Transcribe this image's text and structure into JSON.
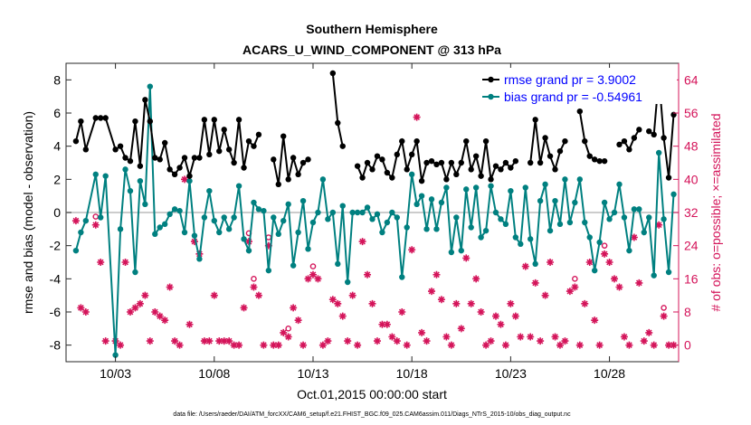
{
  "chart_data": {
    "type": "line",
    "title": "Southern Hemisphere",
    "subtitle": "ACARS_U_WIND_COMPONENT @ 313 hPa",
    "xlabel": "Oct.01,2015 00:00:00 start",
    "ylabel": "rmse and bias (model - observation)",
    "y2label": "# of obs: o=possible; ×=assimilated",
    "footer": "data file: /Users/raeder/DAI/ATM_forcXX/CAM6_setup/f.e21.FHIST_BGC.f09_025.CAM6assim.011/Diags_NTrS_2015-10/obs_diag_output.nc",
    "xlim": [
      0.5,
      31.5
    ],
    "ylim": [
      -9,
      9
    ],
    "y2lim": [
      -4,
      68
    ],
    "xticks": [
      {
        "x": 3,
        "label": "10/03"
      },
      {
        "x": 8,
        "label": "10/08"
      },
      {
        "x": 13,
        "label": "10/13"
      },
      {
        "x": 18,
        "label": "10/18"
      },
      {
        "x": 23,
        "label": "10/23"
      },
      {
        "x": 28,
        "label": "10/28"
      }
    ],
    "yticks": [
      -8,
      -6,
      -4,
      -2,
      0,
      2,
      4,
      6,
      8
    ],
    "y2ticks": [
      0,
      8,
      16,
      24,
      32,
      40,
      48,
      56,
      64
    ],
    "zero_line": 0,
    "legend_location": "top-right",
    "colors": {
      "rmse": "#000000",
      "bias": "#008080",
      "obs": "#d4145a",
      "zero": "#bbbbbb",
      "legend_rmse_text": "#0000ff",
      "legend_bias_text": "#0000ff"
    },
    "series": [
      {
        "name": "rmse grand pr = 3.9002",
        "role": "rmse",
        "x": [
          1.0,
          1.25,
          1.5,
          2.0,
          2.25,
          2.5,
          3.0,
          3.25,
          3.5,
          3.75,
          4.0,
          4.25,
          4.5,
          4.75,
          5.0,
          5.25,
          5.5,
          5.75,
          6.0,
          6.25,
          6.5,
          6.75,
          7.0,
          7.25,
          7.5,
          7.75,
          8.0,
          8.25,
          8.5,
          8.75,
          9.0,
          9.25,
          9.5,
          9.75,
          10.0,
          10.25,
          10.5,
          10.75,
          11.0,
          11.25,
          11.5,
          11.75,
          12.0,
          12.25,
          12.5,
          12.75,
          13.0,
          13.25,
          13.5,
          13.75,
          14.0,
          14.25,
          14.5,
          14.75,
          15.0,
          15.25,
          15.5,
          15.75,
          16.0,
          16.25,
          16.5,
          16.75,
          17.0,
          17.25,
          17.5,
          17.75,
          18.0,
          18.25,
          18.5,
          18.75,
          19.0,
          19.25,
          19.5,
          19.75,
          20.0,
          20.25,
          20.5,
          20.75,
          21.0,
          21.25,
          21.5,
          21.75,
          22.0,
          22.25,
          22.5,
          22.75,
          23.0,
          23.25,
          23.5,
          23.75,
          24.0,
          24.25,
          24.5,
          24.75,
          25.0,
          25.25,
          25.5,
          25.75,
          26.0,
          26.25,
          26.5,
          26.75,
          27.0,
          27.25,
          27.5,
          27.75,
          28.0,
          28.25,
          28.5,
          28.75,
          29.0,
          29.25,
          29.5,
          29.75,
          30.0,
          30.25,
          30.5,
          30.75,
          31.0,
          31.25
        ],
        "values": [
          4.3,
          5.5,
          3.8,
          5.7,
          5.7,
          5.7,
          3.8,
          4.0,
          3.3,
          3.1,
          5.5,
          2.8,
          6.8,
          5.5,
          3.3,
          3.2,
          4.2,
          2.6,
          2.3,
          2.7,
          3.3,
          2.2,
          3.3,
          3.3,
          5.6,
          3.5,
          5.6,
          3.7,
          5.0,
          3.8,
          3.0,
          5.6,
          2.7,
          4.3,
          4.0,
          4.7,
          null,
          null,
          3.2,
          1.7,
          4.6,
          2.0,
          3.3,
          2.3,
          3.0,
          3.2,
          null,
          null,
          null,
          null,
          8.4,
          5.4,
          4.0,
          null,
          null,
          2.8,
          2.1,
          3.0,
          2.6,
          3.4,
          3.2,
          2.4,
          2.1,
          3.5,
          4.3,
          2.6,
          3.5,
          4.3,
          1.9,
          3.0,
          3.1,
          2.9,
          3.0,
          2.0,
          3.0,
          2.3,
          3.0,
          4.3,
          2.6,
          3.4,
          2.2,
          4.3,
          2.0,
          2.8,
          2.6,
          3.0,
          2.7,
          3.1,
          null,
          null,
          3.0,
          5.6,
          3.0,
          4.5,
          3.4,
          2.6,
          3.7,
          4.3,
          null,
          null,
          6.1,
          4.3,
          3.4,
          3.2,
          3.1,
          3.1,
          null,
          null,
          4.1,
          4.3,
          3.8,
          4.5,
          5.0,
          null,
          4.9,
          4.7,
          8.2,
          4.5,
          2.1,
          5.9
        ]
      },
      {
        "name": "bias grand pr = -0.54961",
        "role": "bias",
        "x": [
          1.0,
          1.25,
          1.5,
          2.0,
          2.25,
          2.5,
          3.0,
          3.25,
          3.5,
          3.75,
          4.0,
          4.25,
          4.5,
          4.75,
          5.0,
          5.25,
          5.5,
          5.75,
          6.0,
          6.25,
          6.5,
          6.75,
          7.0,
          7.25,
          7.5,
          7.75,
          8.0,
          8.25,
          8.5,
          8.75,
          9.0,
          9.25,
          9.5,
          9.75,
          10.0,
          10.25,
          10.5,
          10.75,
          11.0,
          11.25,
          11.5,
          11.75,
          12.0,
          12.25,
          12.5,
          12.75,
          13.0,
          13.25,
          13.5,
          13.75,
          14.0,
          14.25,
          14.5,
          14.75,
          15.0,
          15.25,
          15.5,
          15.75,
          16.0,
          16.25,
          16.5,
          16.75,
          17.0,
          17.25,
          17.5,
          17.75,
          18.0,
          18.25,
          18.5,
          18.75,
          19.0,
          19.25,
          19.5,
          19.75,
          20.0,
          20.25,
          20.5,
          20.75,
          21.0,
          21.25,
          21.5,
          21.75,
          22.0,
          22.25,
          22.5,
          22.75,
          23.0,
          23.25,
          23.5,
          23.75,
          24.0,
          24.25,
          24.5,
          24.75,
          25.0,
          25.25,
          25.5,
          25.75,
          26.0,
          26.25,
          26.5,
          26.75,
          27.0,
          27.25,
          27.5,
          27.75,
          28.0,
          28.25,
          28.5,
          28.75,
          29.0,
          29.25,
          29.5,
          29.75,
          30.0,
          30.25,
          30.5,
          30.75,
          31.0,
          31.25
        ],
        "values": [
          -2.3,
          -1.2,
          -0.5,
          2.3,
          -0.3,
          2.2,
          -8.6,
          -1.0,
          2.6,
          1.3,
          -3.6,
          1.9,
          0.5,
          7.6,
          -1.3,
          -0.9,
          -0.7,
          -0.1,
          0.2,
          0.1,
          -1.2,
          1.9,
          -1.4,
          -2.8,
          -0.3,
          1.3,
          -0.5,
          -1.2,
          -0.3,
          -1.0,
          -0.3,
          1.6,
          -1.6,
          -2.3,
          0.6,
          0.2,
          0.1,
          -3.5,
          -0.3,
          -1.3,
          -0.5,
          0.5,
          -3.2,
          -1.2,
          0.7,
          -2.2,
          -0.6,
          0.0,
          2.0,
          -0.4,
          0.0,
          -3.1,
          0.4,
          -4.2,
          0.0,
          0.0,
          0.0,
          0.3,
          -0.4,
          -0.1,
          -1.2,
          -0.6,
          0.0,
          -0.3,
          -3.9,
          -0.9,
          2.3,
          0.5,
          1.0,
          -1.0,
          0.8,
          -1.0,
          0.6,
          1.5,
          -2.4,
          -0.3,
          -2.3,
          1.4,
          -0.9,
          1.5,
          -1.5,
          -1.1,
          1.6,
          0.0,
          -0.4,
          -0.7,
          1.3,
          -1.5,
          -1.9,
          1.5,
          -1.6,
          -3.1,
          0.7,
          1.7,
          -1.1,
          0.7,
          -0.7,
          2.0,
          -0.6,
          0.6,
          2.0,
          -0.6,
          -1.5,
          -3.5,
          -1.8,
          0.6,
          -0.4,
          0.0,
          1.7,
          -0.3,
          -2.3,
          0.2,
          0.2,
          -1.2,
          -0.3,
          -3.8,
          3.6,
          -0.4,
          -3.6,
          1.1
        ]
      },
      {
        "name": "observations (possible / assimilated)",
        "role": "obs",
        "axis": "right",
        "x": [
          1.0,
          1.25,
          1.5,
          2.0,
          2.25,
          2.5,
          3.0,
          3.25,
          3.5,
          3.75,
          4.0,
          4.25,
          4.5,
          4.75,
          5.0,
          5.25,
          5.5,
          5.75,
          6.0,
          6.25,
          6.5,
          6.75,
          7.0,
          7.25,
          7.5,
          7.75,
          8.0,
          8.25,
          8.5,
          8.75,
          9.0,
          9.25,
          9.5,
          9.75,
          10.0,
          10.25,
          10.5,
          10.75,
          11.0,
          11.25,
          11.5,
          11.75,
          12.0,
          12.25,
          12.5,
          12.75,
          13.0,
          13.25,
          13.5,
          13.75,
          14.0,
          14.25,
          14.5,
          14.75,
          15.0,
          15.25,
          15.5,
          15.75,
          16.0,
          16.25,
          16.5,
          16.75,
          17.0,
          17.25,
          17.5,
          17.75,
          18.0,
          18.25,
          18.5,
          18.75,
          19.0,
          19.25,
          19.5,
          19.75,
          20.0,
          20.25,
          20.5,
          20.75,
          21.0,
          21.25,
          21.5,
          21.75,
          22.0,
          22.25,
          22.5,
          22.75,
          23.0,
          23.25,
          23.5,
          23.75,
          24.0,
          24.25,
          24.5,
          24.75,
          25.0,
          25.25,
          25.5,
          25.75,
          26.0,
          26.25,
          26.5,
          26.75,
          27.0,
          27.25,
          27.5,
          27.75,
          28.0,
          28.25,
          28.5,
          28.75,
          29.0,
          29.25,
          29.5,
          29.75,
          30.0,
          30.25,
          30.5,
          30.75,
          31.0,
          31.25
        ],
        "possible": [
          30,
          9,
          8,
          31,
          20,
          1,
          1,
          0,
          20,
          8,
          9,
          10,
          12,
          1,
          8,
          7,
          6,
          14,
          1,
          0,
          40,
          5,
          25,
          22,
          1,
          1,
          12,
          1,
          1,
          1,
          0,
          0,
          9,
          27,
          16,
          12,
          0,
          26,
          0,
          0,
          3,
          4,
          9,
          6,
          0,
          16,
          19,
          16,
          0,
          1,
          11,
          10,
          7,
          1,
          12,
          0,
          25,
          17,
          10,
          1,
          5,
          5,
          2,
          1,
          8,
          0,
          23,
          55,
          3,
          1,
          13,
          17,
          11,
          2,
          0,
          10,
          4,
          21,
          10,
          16,
          8,
          0,
          1,
          7,
          5,
          0,
          10,
          7,
          2,
          19,
          2,
          15,
          1,
          12,
          20,
          2,
          0,
          1,
          13,
          16,
          0,
          10,
          20,
          6,
          0,
          24,
          20,
          16,
          14,
          2,
          0,
          26,
          15,
          1,
          3,
          0,
          29,
          9,
          0,
          0
        ],
        "assimilated": [
          30,
          9,
          8,
          29,
          20,
          1,
          1,
          0,
          20,
          8,
          9,
          10,
          12,
          1,
          8,
          7,
          6,
          14,
          1,
          0,
          40,
          5,
          25,
          22,
          1,
          1,
          12,
          1,
          1,
          1,
          0,
          0,
          9,
          25,
          14,
          12,
          0,
          24,
          0,
          0,
          3,
          2,
          9,
          6,
          0,
          16,
          17,
          16,
          0,
          1,
          11,
          10,
          7,
          1,
          12,
          0,
          25,
          17,
          10,
          1,
          5,
          5,
          2,
          1,
          8,
          0,
          23,
          55,
          3,
          1,
          13,
          17,
          11,
          2,
          0,
          10,
          4,
          21,
          10,
          16,
          8,
          0,
          1,
          7,
          5,
          0,
          10,
          7,
          2,
          19,
          2,
          15,
          1,
          12,
          20,
          2,
          0,
          1,
          13,
          14,
          0,
          10,
          20,
          6,
          0,
          22,
          20,
          16,
          14,
          2,
          0,
          26,
          15,
          1,
          3,
          0,
          29,
          7,
          0,
          0
        ]
      }
    ]
  }
}
